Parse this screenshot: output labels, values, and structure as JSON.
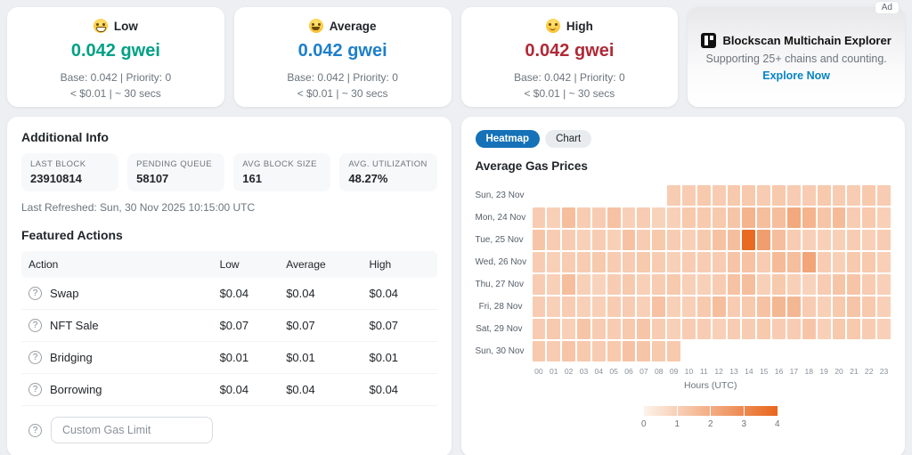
{
  "colors": {
    "low_green": "#00a186",
    "average_blue": "#1e7fc9",
    "high_red": "#b02a37",
    "accent_blue": "#1571b8",
    "link_blue": "#0784c3",
    "heatmap_min": "#fdf3eb",
    "heatmap_max": "#e8661c"
  },
  "icons": {
    "help": "?"
  },
  "gas_cards": [
    {
      "icon": "grinning-face-icon",
      "label": "Low",
      "price": "0.042 gwei",
      "color": "#00a186",
      "base_line": "Base: 0.042 | Priority: 0",
      "cost_line": "< $0.01 | ~ 30 secs"
    },
    {
      "icon": "smiling-face-icon",
      "label": "Average",
      "price": "0.042 gwei",
      "color": "#1e7fc9",
      "base_line": "Base: 0.042 | Priority: 0",
      "cost_line": "< $0.01 | ~ 30 secs"
    },
    {
      "icon": "slightly-smiling-face-icon",
      "label": "High",
      "price": "0.042 gwei",
      "color": "#b02a37",
      "base_line": "Base: 0.042 | Priority: 0",
      "cost_line": "< $0.01 | ~ 30 secs"
    }
  ],
  "ad": {
    "badge": "Ad",
    "title": "Blockscan Multichain Explorer",
    "subtitle": "Supporting 25+ chains and counting.",
    "cta": "Explore Now"
  },
  "additional_info": {
    "title": "Additional Info",
    "stats": [
      {
        "label": "LAST BLOCK",
        "value": "23910814"
      },
      {
        "label": "PENDING QUEUE",
        "value": "58107"
      },
      {
        "label": "AVG BLOCK SIZE",
        "value": "161"
      },
      {
        "label": "AVG. UTILIZATION",
        "value": "48.27%"
      }
    ],
    "last_refreshed": "Last Refreshed: Sun, 30 Nov 2025 10:15:00 UTC"
  },
  "featured_actions": {
    "title": "Featured Actions",
    "columns": [
      "Action",
      "Low",
      "Average",
      "High"
    ],
    "rows": [
      {
        "action": "Swap",
        "low": "$0.04",
        "average": "$0.04",
        "high": "$0.04"
      },
      {
        "action": "NFT Sale",
        "low": "$0.07",
        "average": "$0.07",
        "high": "$0.07"
      },
      {
        "action": "Bridging",
        "low": "$0.01",
        "average": "$0.01",
        "high": "$0.01"
      },
      {
        "action": "Borrowing",
        "low": "$0.04",
        "average": "$0.04",
        "high": "$0.04"
      }
    ],
    "custom_input_placeholder": "Custom Gas Limit"
  },
  "chart_panel": {
    "tabs": [
      {
        "label": "Heatmap",
        "active": true
      },
      {
        "label": "Chart",
        "active": false
      }
    ]
  },
  "chart_data": {
    "type": "heatmap",
    "title": "Average Gas Prices",
    "xlabel": "Hours (UTC)",
    "x_labels": [
      "00",
      "01",
      "02",
      "03",
      "04",
      "05",
      "06",
      "07",
      "08",
      "09",
      "10",
      "11",
      "12",
      "13",
      "14",
      "15",
      "16",
      "17",
      "18",
      "19",
      "20",
      "21",
      "22",
      "23"
    ],
    "y_labels": [
      "Sun, 23 Nov",
      "Mon, 24 Nov",
      "Tue, 25 Nov",
      "Wed, 26 Nov",
      "Thu, 27 Nov",
      "Fri, 28 Nov",
      "Sat, 29 Nov",
      "Sun, 30 Nov"
    ],
    "color_scale": {
      "min": 0,
      "max": 4,
      "min_color": "#fdf3eb",
      "max_color": "#e8661c",
      "legend_ticks": [
        0,
        1,
        2,
        3,
        4
      ]
    },
    "values": [
      [
        null,
        null,
        null,
        null,
        null,
        null,
        null,
        null,
        null,
        1.1,
        1.1,
        1.2,
        1.1,
        1.2,
        1.2,
        1.1,
        1.2,
        1.1,
        1.1,
        1.2,
        1.1,
        1.1,
        1.2,
        1.1
      ],
      [
        1.1,
        1.0,
        1.5,
        1.1,
        1.1,
        1.4,
        1.0,
        1.1,
        0.9,
        1.0,
        1.2,
        1.2,
        1.2,
        1.3,
        1.8,
        1.5,
        1.5,
        2.1,
        1.8,
        1.3,
        1.6,
        1.1,
        1.2,
        1.0
      ],
      [
        1.3,
        1.1,
        1.1,
        1.0,
        1.1,
        1.0,
        1.4,
        1.1,
        1.2,
        1.1,
        1.0,
        1.2,
        1.4,
        1.5,
        3.9,
        2.4,
        1.5,
        1.1,
        1.0,
        1.0,
        1.0,
        1.1,
        1.0,
        1.1
      ],
      [
        1.1,
        1.0,
        1.1,
        1.1,
        1.2,
        1.1,
        1.1,
        1.2,
        1.1,
        1.0,
        1.1,
        1.1,
        1.1,
        1.3,
        1.4,
        1.1,
        1.6,
        1.5,
        2.2,
        1.1,
        1.0,
        1.2,
        1.2,
        1.0
      ],
      [
        1.1,
        1.0,
        1.5,
        1.0,
        0.9,
        1.1,
        1.2,
        1.0,
        1.1,
        1.2,
        1.0,
        1.0,
        1.1,
        1.4,
        1.5,
        1.0,
        1.2,
        1.0,
        0.9,
        1.1,
        1.3,
        1.3,
        1.1,
        1.0
      ],
      [
        1.1,
        1.0,
        1.1,
        1.0,
        1.0,
        1.1,
        1.1,
        1.0,
        1.4,
        1.0,
        1.0,
        1.2,
        1.5,
        1.1,
        1.2,
        1.4,
        1.7,
        1.7,
        1.1,
        1.0,
        1.2,
        1.3,
        1.2,
        1.0
      ],
      [
        1.1,
        1.2,
        1.0,
        1.3,
        1.1,
        1.1,
        1.2,
        1.3,
        1.1,
        1.0,
        1.1,
        1.1,
        1.0,
        1.1,
        1.1,
        1.2,
        1.1,
        1.1,
        1.3,
        1.0,
        1.2,
        1.2,
        1.1,
        1.0
      ],
      [
        1.2,
        1.1,
        1.3,
        1.2,
        1.1,
        1.2,
        1.4,
        1.3,
        1.2,
        1.2,
        null,
        null,
        null,
        null,
        null,
        null,
        null,
        null,
        null,
        null,
        null,
        null,
        null,
        null
      ]
    ]
  }
}
